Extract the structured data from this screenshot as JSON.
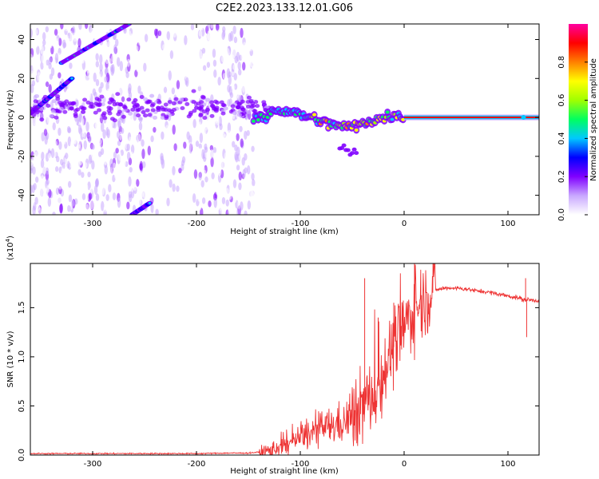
{
  "title": "C2E2.2023.133.12.01.G06",
  "chart_data": [
    {
      "type": "heatmap",
      "xlabel": "Height of straight line (km)",
      "ylabel": "Frequency (Hz)",
      "xlim": [
        -360,
        130
      ],
      "ylim": [
        -50,
        48
      ],
      "xticks": [
        -300,
        -200,
        -100,
        0,
        100
      ],
      "yticks": [
        -40,
        -20,
        0,
        20,
        40
      ],
      "colorbar": {
        "label": "Normalized spectral amplitude",
        "range": [
          0.0,
          1.0
        ],
        "ticks": [
          "0.0",
          "0.2",
          "0.4",
          "0.6",
          "0.8"
        ],
        "colormap": [
          "#ffffff",
          "#c9a8ff",
          "#8000ff",
          "#0000ff",
          "#00c8ff",
          "#00ff60",
          "#a0ff00",
          "#ffff00",
          "#ff8000",
          "#ff0000",
          "#ff00a0"
        ]
      },
      "ridge": [
        {
          "x": -130,
          "y": 4
        },
        {
          "x": -110,
          "y": 3
        },
        {
          "x": -90,
          "y": 0
        },
        {
          "x": -75,
          "y": -3
        },
        {
          "x": -60,
          "y": -5
        },
        {
          "x": -45,
          "y": -4
        },
        {
          "x": -35,
          "y": -2
        },
        {
          "x": -20,
          "y": 0
        },
        {
          "x": -5,
          "y": 1
        },
        {
          "x": 0,
          "y": 0
        },
        {
          "x": 130,
          "y": 0
        }
      ],
      "diagonal_tracks": [
        {
          "x": [
            -360,
            -320
          ],
          "y": [
            2,
            20
          ]
        },
        {
          "x": [
            -330,
            -265
          ],
          "y": [
            28,
            48
          ]
        },
        {
          "x": [
            -262,
            -245
          ],
          "y": [
            -50,
            -44
          ]
        }
      ]
    },
    {
      "type": "line",
      "xlabel": "Height of straight line (km)",
      "ylabel": "SNR (10 * v/v)",
      "scale_note": "(x10",
      "scale_exp": "4",
      "scale_close": ")",
      "xlim": [
        -360,
        130
      ],
      "ylim": [
        0,
        1.95
      ],
      "xticks": [
        -300,
        -200,
        -100,
        0,
        100
      ],
      "yticks": [
        0.0,
        0.5,
        1.0,
        1.5
      ],
      "ytick_labels": [
        "0.0",
        "0.5",
        "1.0",
        "1.5"
      ],
      "color": "#ee3333",
      "series": [
        {
          "x": [
            -360,
            -300,
            -200,
            -170,
            -150,
            -130,
            -120,
            -110,
            -100,
            -90,
            -80,
            -70,
            -60,
            -55,
            -50,
            -45,
            -40,
            -35,
            -30,
            -25,
            -20,
            -15,
            -10,
            -5,
            0,
            5,
            10,
            15,
            20,
            25,
            30,
            40,
            50,
            60,
            70,
            80,
            90,
            100,
            110,
            115,
            120,
            130
          ],
          "y": [
            0.015,
            0.015,
            0.015,
            0.02,
            0.02,
            0.04,
            0.08,
            0.12,
            0.18,
            0.22,
            0.27,
            0.3,
            0.32,
            0.35,
            0.4,
            0.45,
            0.5,
            0.55,
            0.6,
            0.7,
            0.85,
            1.0,
            1.1,
            1.2,
            1.3,
            1.4,
            1.48,
            1.55,
            1.6,
            1.65,
            1.68,
            1.7,
            1.7,
            1.69,
            1.67,
            1.66,
            1.64,
            1.62,
            1.6,
            1.58,
            1.58,
            1.57
          ]
        }
      ],
      "spikes": [
        {
          "x": -38,
          "y": 1.8
        },
        {
          "x": -25,
          "y": 1.4
        },
        {
          "x": -10,
          "y": 1.55
        },
        {
          "x": 10,
          "y": 1.95
        },
        {
          "x": 117,
          "y": 1.8
        },
        {
          "x": 118,
          "y": 1.2
        }
      ]
    }
  ]
}
